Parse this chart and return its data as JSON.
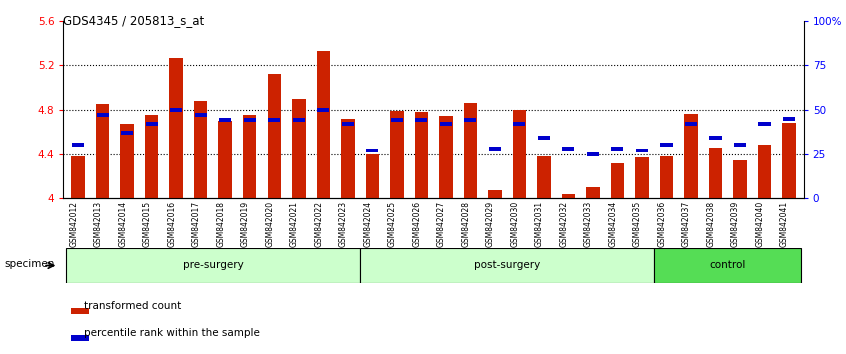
{
  "title": "GDS4345 / 205813_s_at",
  "samples": [
    "GSM842012",
    "GSM842013",
    "GSM842014",
    "GSM842015",
    "GSM842016",
    "GSM842017",
    "GSM842018",
    "GSM842019",
    "GSM842020",
    "GSM842021",
    "GSM842022",
    "GSM842023",
    "GSM842024",
    "GSM842025",
    "GSM842026",
    "GSM842027",
    "GSM842028",
    "GSM842029",
    "GSM842030",
    "GSM842031",
    "GSM842032",
    "GSM842033",
    "GSM842034",
    "GSM842035",
    "GSM842036",
    "GSM842037",
    "GSM842038",
    "GSM842039",
    "GSM842040",
    "GSM842041"
  ],
  "red_values": [
    4.38,
    4.85,
    4.67,
    4.75,
    5.27,
    4.88,
    4.7,
    4.75,
    5.12,
    4.9,
    5.33,
    4.72,
    4.4,
    4.79,
    4.78,
    4.74,
    4.86,
    4.07,
    4.8,
    4.38,
    4.04,
    4.1,
    4.32,
    4.37,
    4.38,
    4.76,
    4.45,
    4.35,
    4.48,
    4.68
  ],
  "blue_percents": [
    30,
    47,
    37,
    42,
    50,
    47,
    44,
    44,
    44,
    44,
    50,
    42,
    27,
    44,
    44,
    42,
    44,
    28,
    42,
    34,
    28,
    25,
    28,
    27,
    30,
    42,
    34,
    30,
    42,
    45
  ],
  "groups": [
    {
      "label": "pre-surgery",
      "start": 0,
      "end": 12,
      "color": "#ccffcc"
    },
    {
      "label": "post-surgery",
      "start": 12,
      "end": 24,
      "color": "#ccffcc"
    },
    {
      "label": "control",
      "start": 24,
      "end": 30,
      "color": "#55dd55"
    }
  ],
  "ylim": [
    4.0,
    5.6
  ],
  "yticks": [
    4.0,
    4.4,
    4.8,
    5.2,
    5.6
  ],
  "ytick_labels": [
    "4",
    "4.4",
    "4.8",
    "5.2",
    "5.6"
  ],
  "right_yticks": [
    0,
    25,
    50,
    75,
    100
  ],
  "right_ytick_labels": [
    "0",
    "25",
    "50",
    "75",
    "100%"
  ],
  "bar_color": "#CC2200",
  "dot_color": "#0000CC",
  "bar_width": 0.55,
  "background_color": "#ffffff"
}
